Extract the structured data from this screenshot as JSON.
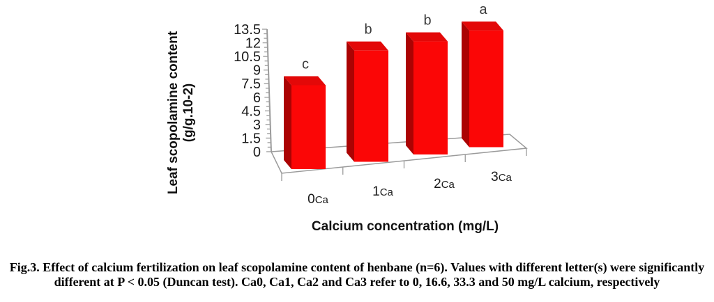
{
  "figure": {
    "caption_line1": "Fig.3. Effect of calcium fertilization on leaf scopolamine content of henbane (n=6). Values with different letter(s) were significantly",
    "caption_line2": "different at P < 0.05 (Duncan test). Ca0, Ca1, Ca2 and Ca3 refer to 0, 16.6, 33.3 and 50 mg/L calcium, respectively"
  },
  "chart_data": {
    "type": "bar",
    "projection": "3d-column",
    "title": "",
    "xlabel": "Calcium concentration (mg/L)",
    "ylabel_line1": "Leaf scopolamine content",
    "ylabel_line2": "(g/g.10-2)",
    "categories": [
      "0Ca",
      "1Ca",
      "2Ca",
      "3Ca"
    ],
    "values": [
      9.2,
      12.2,
      12.4,
      12.8
    ],
    "significance_letters": [
      "c",
      "b",
      "b",
      "a"
    ],
    "ylim": [
      0,
      13.5
    ],
    "ytick_step": 1.5,
    "yticks": [
      0,
      1.5,
      3,
      4.5,
      6,
      7.5,
      9,
      10.5,
      12,
      13.5
    ],
    "minor_tick_step": 0.5,
    "grid": false,
    "legend": "none",
    "colors": {
      "bar_front": "#FB0606",
      "bar_top": "#E30808",
      "bar_side": "#AB0303",
      "axis_line": "#9b9b9b",
      "tick_text": "#1a1a1a",
      "letter_text": "#3a3a3a",
      "axis_title_text": "#111111"
    }
  }
}
